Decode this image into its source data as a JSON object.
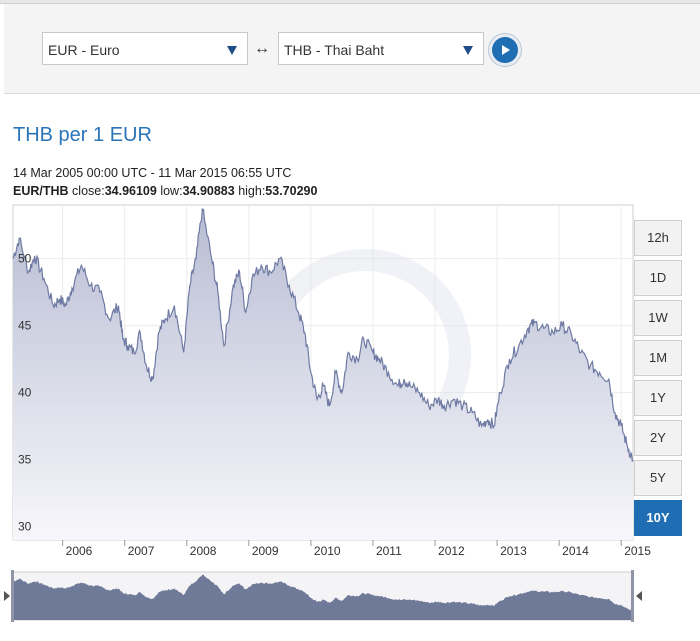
{
  "converter": {
    "from_currency": "EUR - Euro",
    "to_currency": "THB - Thai Baht",
    "swap_symbol": "↔"
  },
  "chart_title": "THB per 1 EUR",
  "date_range": "14 Mar 2005 00:00 UTC - 11 Mar 2015 06:55 UTC",
  "stats": {
    "pair": "EUR/THB",
    "close_label": "close:",
    "close_value": "34.96109",
    "low_label": "low:",
    "low_value": "34.90883",
    "high_label": "high:",
    "high_value": "53.70290"
  },
  "range_buttons": [
    "12h",
    "1D",
    "1W",
    "1M",
    "1Y",
    "2Y",
    "5Y",
    "10Y"
  ],
  "active_range": "10Y",
  "colors": {
    "accent": "#1f6db3",
    "line": "#6e7aa3",
    "area_top": "#b8bdd3",
    "area_bottom": "#f7f7fb",
    "navigator_fill": "#6f7a99"
  },
  "chart_data": {
    "type": "area",
    "title": "THB per 1 EUR",
    "xlabel": "",
    "ylabel": "",
    "ylim": [
      29,
      54
    ],
    "xlim": [
      2005.2,
      2015.19
    ],
    "x_ticks": [
      "2006",
      "2007",
      "2008",
      "2009",
      "2010",
      "2011",
      "2012",
      "2013",
      "2014",
      "2015"
    ],
    "y_ticks": [
      30,
      35,
      40,
      45,
      50
    ],
    "grid": true,
    "x": [
      2005.2,
      2005.3,
      2005.45,
      2005.55,
      2005.7,
      2005.85,
      2005.95,
      2006.05,
      2006.15,
      2006.3,
      2006.45,
      2006.6,
      2006.75,
      2006.9,
      2006.97,
      2007.05,
      2007.15,
      2007.25,
      2007.35,
      2007.45,
      2007.55,
      2007.65,
      2007.8,
      2007.95,
      2008.05,
      2008.15,
      2008.25,
      2008.4,
      2008.5,
      2008.6,
      2008.75,
      2008.85,
      2008.95,
      2009.05,
      2009.2,
      2009.35,
      2009.5,
      2009.65,
      2009.8,
      2009.9,
      2010.0,
      2010.1,
      2010.2,
      2010.3,
      2010.4,
      2010.5,
      2010.6,
      2010.75,
      2010.85,
      2011.0,
      2011.1,
      2011.25,
      2011.4,
      2011.5,
      2011.6,
      2011.75,
      2011.9,
      2012.05,
      2012.15,
      2012.3,
      2012.45,
      2012.6,
      2012.75,
      2012.85,
      2012.95,
      2013.05,
      2013.2,
      2013.35,
      2013.5,
      2013.6,
      2013.75,
      2013.9,
      2014.05,
      2014.2,
      2014.35,
      2014.5,
      2014.65,
      2014.8,
      2014.9,
      2015.0,
      2015.1,
      2015.19
    ],
    "series": [
      {
        "values": [
          50.0,
          51.5,
          49.0,
          50.2,
          48.5,
          46.5,
          47.0,
          46.5,
          47.8,
          49.5,
          48.0,
          47.5,
          45.5,
          46.5,
          44.0,
          43.5,
          43.0,
          44.5,
          42.0,
          41.0,
          44.5,
          45.5,
          46.5,
          43.0,
          48.0,
          50.0,
          53.7,
          50.0,
          47.5,
          43.5,
          48.0,
          49.0,
          46.0,
          48.5,
          49.5,
          49.0,
          50.0,
          48.0,
          46.0,
          44.5,
          41.5,
          39.5,
          40.5,
          39.0,
          41.5,
          40.0,
          43.0,
          42.5,
          44.0,
          43.0,
          42.5,
          41.5,
          40.5,
          41.0,
          40.5,
          40.0,
          39.0,
          39.5,
          39.0,
          39.5,
          39.0,
          38.5,
          37.5,
          38.0,
          37.5,
          40.0,
          42.5,
          43.5,
          44.8,
          45.2,
          44.8,
          44.5,
          45.0,
          44.3,
          43.0,
          42.0,
          41.5,
          41.0,
          38.5,
          37.5,
          36.0,
          35.0
        ]
      }
    ]
  }
}
